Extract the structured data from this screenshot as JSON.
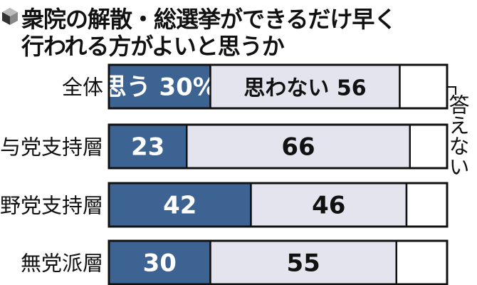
{
  "title_lines": [
    "衆院の解散・総選挙ができるだけ早く",
    "行われる方がよいと思うか"
  ],
  "chart_data": {
    "type": "bar",
    "orientation": "horizontal",
    "stacked": true,
    "title": "衆院の解散・総選挙ができるだけ早く行われる方がよいと思うか",
    "categories": [
      "全体",
      "与党支持層",
      "野党支持層",
      "無党派層"
    ],
    "series": [
      {
        "name": "思う",
        "values": [
          30,
          23,
          42,
          30
        ],
        "color": "#3c6391"
      },
      {
        "name": "思わない",
        "values": [
          56,
          66,
          46,
          55
        ],
        "color": "#e4e4ee"
      },
      {
        "name": "答えない",
        "values": [
          14,
          11,
          12,
          15
        ],
        "color": "#ffffff"
      }
    ],
    "data_labels": [
      [
        "思う 30%",
        "思わない 56"
      ],
      [
        "23",
        "66"
      ],
      [
        "42",
        "46"
      ],
      [
        "30",
        "55"
      ]
    ],
    "xlim": [
      0,
      100
    ],
    "unit": "%"
  },
  "no_answer_label": "答えない"
}
